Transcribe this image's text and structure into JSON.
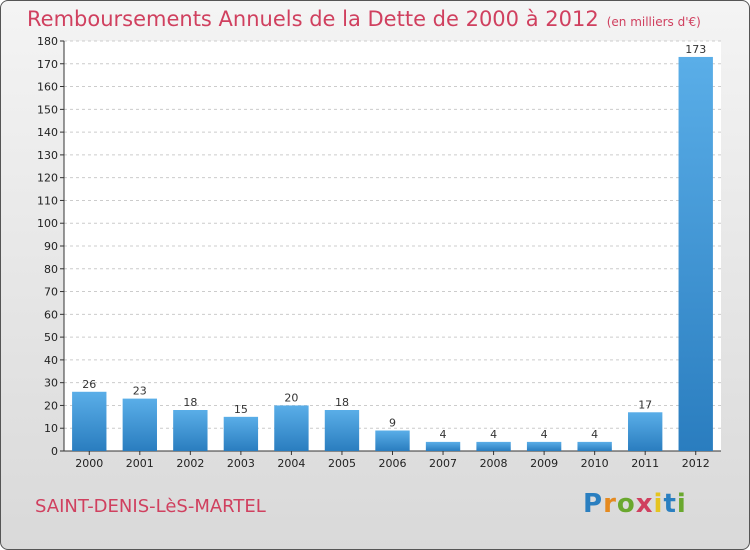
{
  "title": "Remboursements Annuels de la Dette de 2000 à 2012",
  "subtitle": "(en milliers d'€)",
  "city": "SAINT-DENIS-LèS-MARTEL",
  "logo": {
    "letters": [
      "P",
      "r",
      "o",
      "x",
      "i",
      "t",
      "i"
    ],
    "colors": [
      "#2a7fc0",
      "#e58a1f",
      "#6aa82e",
      "#d0405f",
      "#e5c41f",
      "#2a7fc0",
      "#6aa82e"
    ]
  },
  "colors": {
    "bar_top": "#5aaee8",
    "bar_bottom": "#2a7dbf",
    "title": "#d0405f"
  },
  "chart_data": {
    "type": "bar",
    "title": "Remboursements Annuels de la Dette de 2000 à 2012",
    "categories": [
      "2000",
      "2001",
      "2002",
      "2003",
      "2004",
      "2005",
      "2006",
      "2007",
      "2008",
      "2009",
      "2010",
      "2011",
      "2012"
    ],
    "values": [
      26,
      23,
      18,
      15,
      20,
      18,
      9,
      4,
      4,
      4,
      4,
      17,
      173
    ],
    "ylim": [
      0,
      180
    ],
    "ytick_step": 10,
    "grid": true
  }
}
